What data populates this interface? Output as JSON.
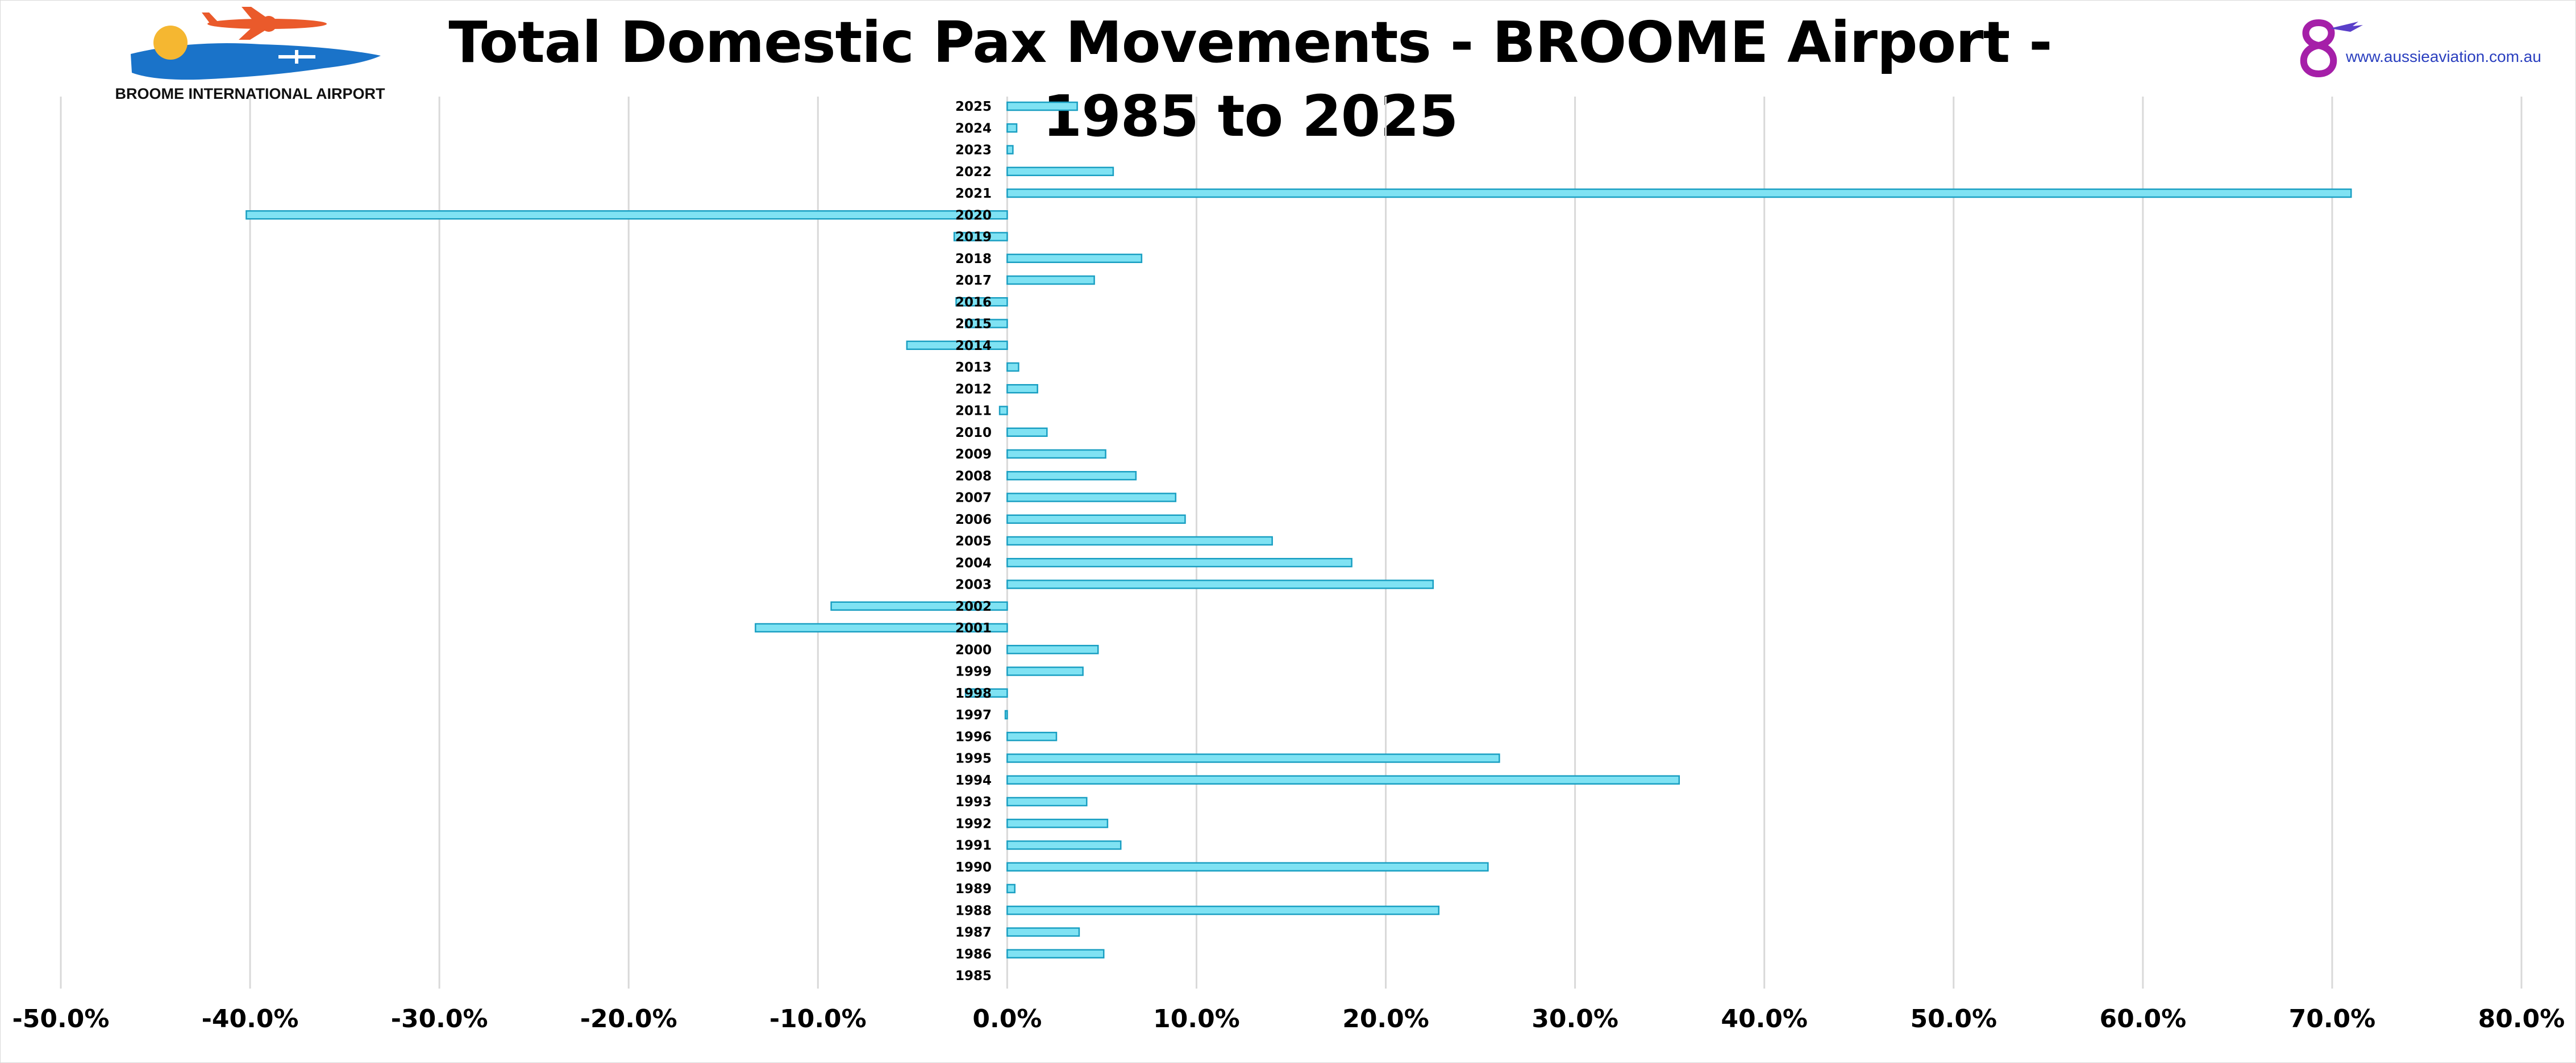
{
  "title": "Total Domestic Pax Movements - BROOME Airport - 1985 to 2025",
  "logo_left": {
    "caption": "BROOME INTERNATIONAL AIRPORT",
    "icon": "airplane-sunset-logo"
  },
  "logo_right": {
    "text": "www.aussieaviation.com.au",
    "icon": "aussie-aviation-logo"
  },
  "colors": {
    "bar_fill": "#7fe2f3",
    "bar_edge": "#1a9fc2",
    "grid": "#d9d9d9"
  },
  "chart_data": {
    "type": "bar",
    "orientation": "horizontal",
    "title": "Total Domestic Pax Movements - BROOME Airport - 1985 to 2025",
    "xlabel": "",
    "ylabel": "",
    "xlim": [
      -50,
      80
    ],
    "x_ticks": [
      "-50.0%",
      "-40.0%",
      "-30.0%",
      "-20.0%",
      "-10.0%",
      "0.0%",
      "10.0%",
      "20.0%",
      "30.0%",
      "40.0%",
      "50.0%",
      "60.0%",
      "70.0%",
      "80.0%"
    ],
    "grid": "vertical",
    "legend": "none",
    "categories": [
      "2025",
      "2024",
      "2023",
      "2022",
      "2021",
      "2020",
      "2019",
      "2018",
      "2017",
      "2016",
      "2015",
      "2014",
      "2013",
      "2012",
      "2011",
      "2010",
      "2009",
      "2008",
      "2007",
      "2006",
      "2005",
      "2004",
      "2003",
      "2002",
      "2001",
      "2000",
      "1999",
      "1998",
      "1997",
      "1996",
      "1995",
      "1994",
      "1993",
      "1992",
      "1991",
      "1990",
      "1989",
      "1988",
      "1987",
      "1986",
      "1985"
    ],
    "values": [
      3.7,
      0.5,
      0.3,
      5.6,
      71.0,
      -40.2,
      -2.8,
      7.1,
      4.6,
      -2.7,
      -2.2,
      -5.3,
      0.6,
      1.6,
      -0.4,
      2.1,
      5.2,
      6.8,
      8.9,
      9.4,
      14.0,
      18.2,
      22.5,
      -9.3,
      -13.3,
      4.8,
      4.0,
      -2.2,
      -0.1,
      2.6,
      26.0,
      35.5,
      4.2,
      5.3,
      6.0,
      25.4,
      0.4,
      22.8,
      3.8,
      5.1,
      0
    ]
  }
}
